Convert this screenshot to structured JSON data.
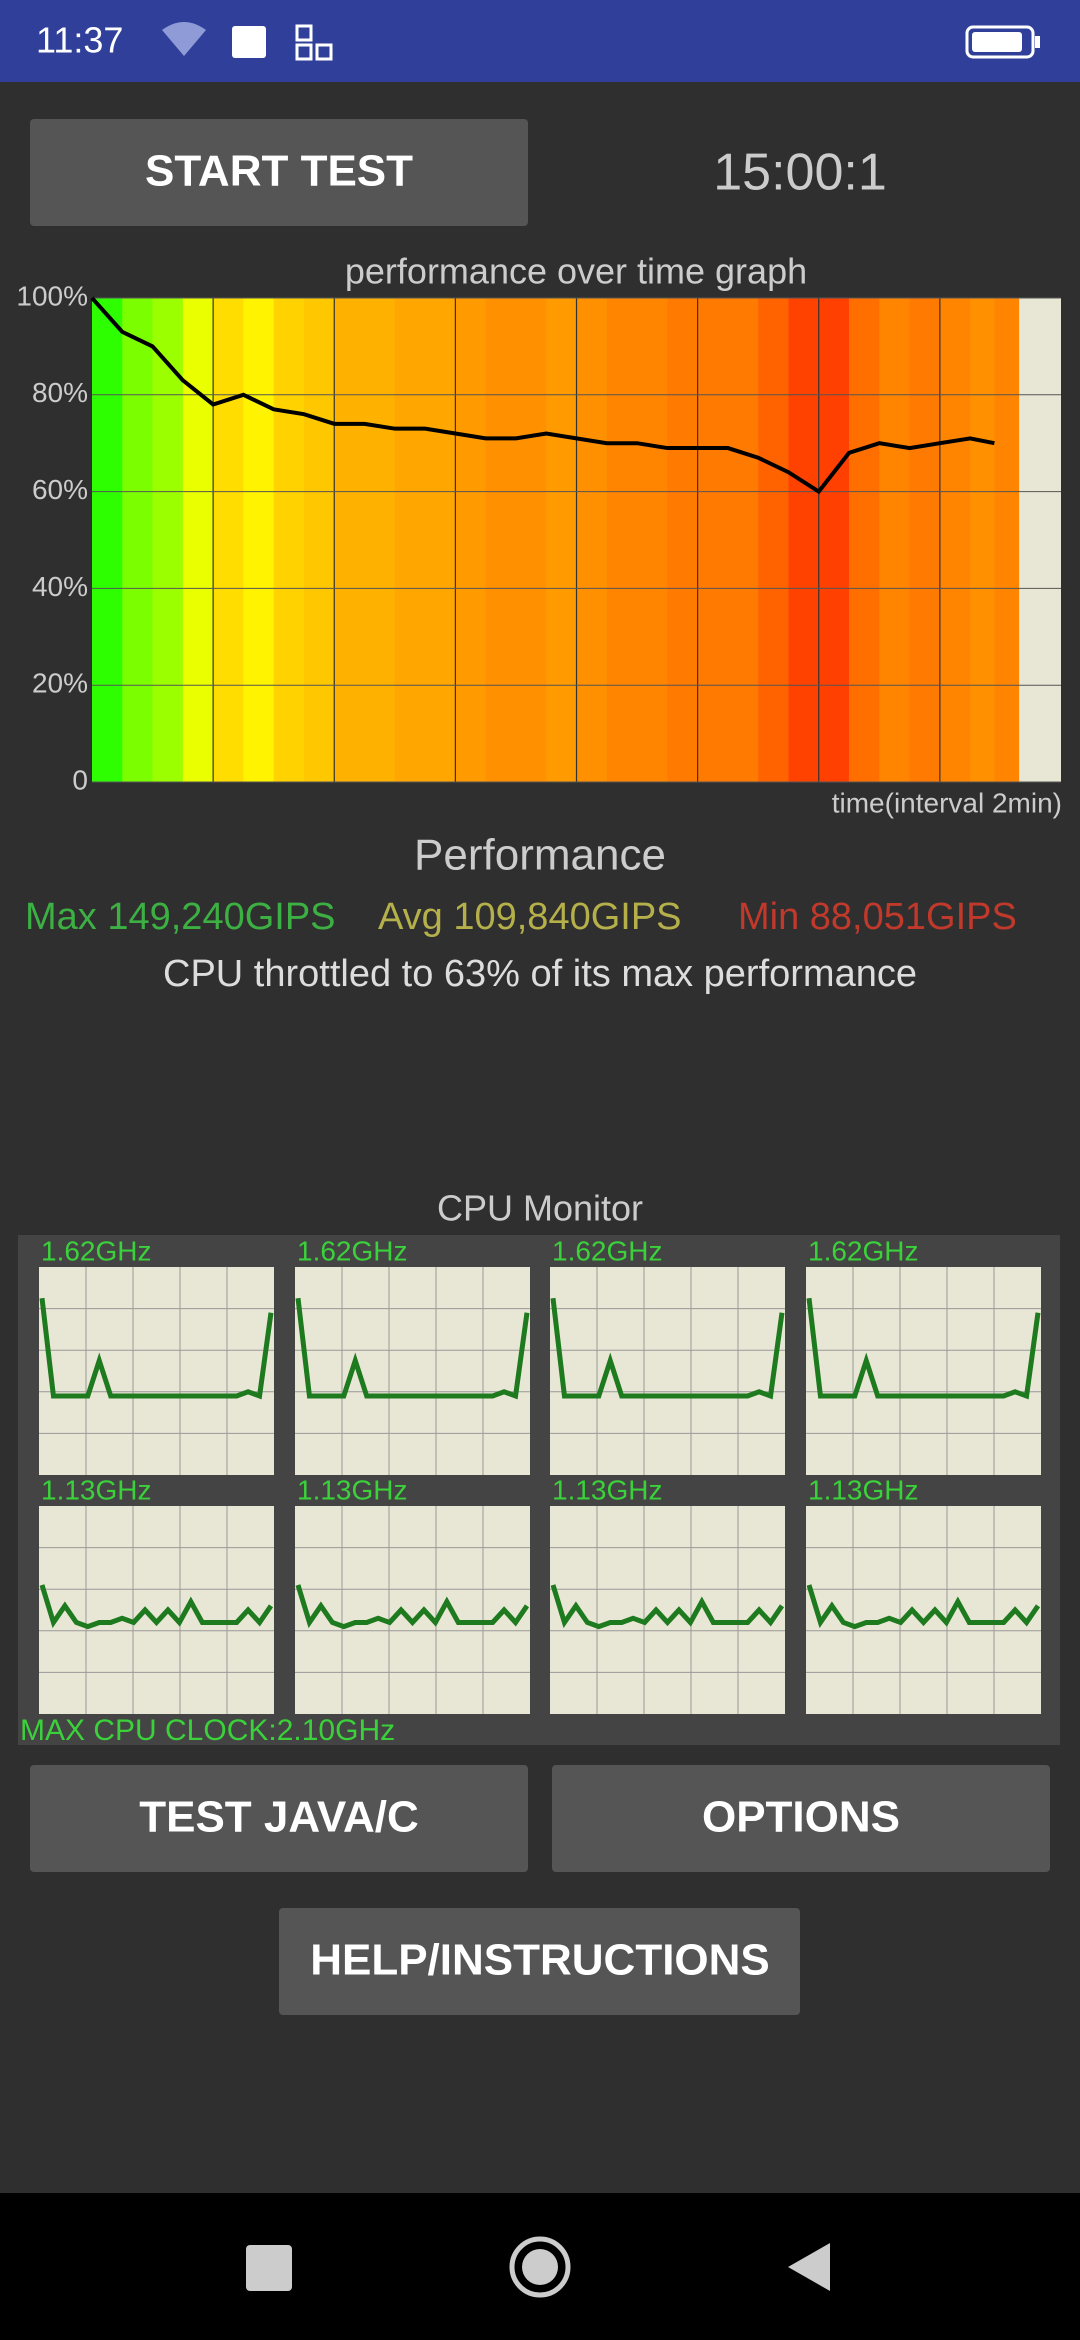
{
  "status_bar": {
    "time": "11:37"
  },
  "buttons": {
    "start_test": "START TEST",
    "test_java": "TEST JAVA/C",
    "options": "OPTIONS",
    "help": "HELP/INSTRUCTIONS"
  },
  "timer": "15:00:1",
  "chart": {
    "type": "line",
    "title": "performance over time graph",
    "x_label": "time(interval 2min)",
    "x": [
      0,
      0.5,
      1,
      1.5,
      2,
      2.5,
      3,
      3.5,
      4,
      4.5,
      5,
      5.5,
      6,
      6.5,
      7,
      7.5,
      8,
      8.5,
      9,
      9.5,
      10,
      10.5,
      11,
      11.5,
      12,
      12.5,
      13,
      13.5,
      14,
      14.5,
      14.9
    ],
    "values": [
      100,
      93,
      90,
      83,
      78,
      80,
      77,
      76,
      74,
      74,
      73,
      73,
      72,
      71,
      71,
      72,
      71,
      70,
      70,
      69,
      69,
      69,
      67,
      64,
      60,
      68,
      70,
      69,
      70,
      71,
      70
    ],
    "color": "#000000",
    "xlim": [
      0,
      16
    ],
    "ylim": [
      0,
      100
    ],
    "yticks": [
      0,
      {
        "value": 20,
        "label": "20%"
      },
      {
        "value": 40,
        "label": "40%"
      },
      {
        "value": 60,
        "label": "60%"
      },
      {
        "value": 80,
        "label": "80%"
      },
      {
        "value": 100,
        "label": "100%"
      }
    ],
    "grid": true
  },
  "performance": {
    "title": "Performance",
    "max": "Max 149,240GIPS",
    "avg": "Avg 109,840GIPS",
    "min": "Min 88,051GIPS",
    "throttled": "CPU throttled to 63% of its max performance"
  },
  "cpu_monitor": {
    "title": "CPU Monitor",
    "ylim": [
      0,
      100
    ],
    "color": "#1e7a1e",
    "cores": [
      {
        "label": "1.62GHz",
        "values": [
          85,
          38,
          38,
          38,
          38,
          55,
          38,
          38,
          38,
          38,
          38,
          38,
          38,
          38,
          38,
          38,
          38,
          38,
          40,
          38,
          78
        ]
      },
      {
        "label": "1.62GHz",
        "values": [
          85,
          38,
          38,
          38,
          38,
          55,
          38,
          38,
          38,
          38,
          38,
          38,
          38,
          38,
          38,
          38,
          38,
          38,
          40,
          38,
          78
        ]
      },
      {
        "label": "1.62GHz",
        "values": [
          85,
          38,
          38,
          38,
          38,
          55,
          38,
          38,
          38,
          38,
          38,
          38,
          38,
          38,
          38,
          38,
          38,
          38,
          40,
          38,
          78
        ]
      },
      {
        "label": "1.62GHz",
        "values": [
          85,
          38,
          38,
          38,
          38,
          55,
          38,
          38,
          38,
          38,
          38,
          38,
          38,
          38,
          38,
          38,
          38,
          38,
          40,
          38,
          78
        ]
      },
      {
        "label": "1.13GHz",
        "values": [
          62,
          44,
          52,
          44,
          42,
          44,
          44,
          46,
          44,
          50,
          44,
          50,
          44,
          54,
          44,
          44,
          44,
          44,
          50,
          44,
          52
        ]
      },
      {
        "label": "1.13GHz",
        "values": [
          62,
          44,
          52,
          44,
          42,
          44,
          44,
          46,
          44,
          50,
          44,
          50,
          44,
          54,
          44,
          44,
          44,
          44,
          50,
          44,
          52
        ]
      },
      {
        "label": "1.13GHz",
        "values": [
          62,
          44,
          52,
          44,
          42,
          44,
          44,
          46,
          44,
          50,
          44,
          50,
          44,
          54,
          44,
          44,
          44,
          44,
          50,
          44,
          52
        ]
      },
      {
        "label": "1.13GHz",
        "values": [
          62,
          44,
          52,
          44,
          42,
          44,
          44,
          46,
          44,
          50,
          44,
          50,
          44,
          54,
          44,
          44,
          44,
          44,
          50,
          44,
          52
        ]
      }
    ],
    "max_clock": "MAX CPU CLOCK:2.10GHz"
  }
}
